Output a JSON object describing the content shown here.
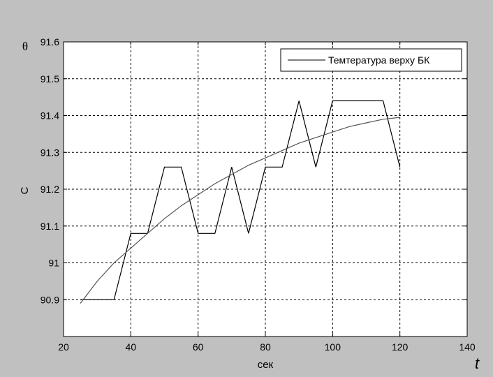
{
  "figure": {
    "background": "#c0c0c0",
    "axes_background": "#ffffff",
    "theta_label": "θ",
    "t_label": "t"
  },
  "chart_data": {
    "type": "line",
    "title": "",
    "xlabel": "сек",
    "ylabel": "C",
    "xlim": [
      20,
      140
    ],
    "ylim": [
      90.8,
      91.6
    ],
    "xticks": [
      20,
      40,
      60,
      80,
      100,
      120,
      140
    ],
    "yticks": [
      90.9,
      91,
      91.1,
      91.2,
      91.3,
      91.4,
      91.5,
      91.6
    ],
    "ytick_labels": [
      "90.9",
      "91",
      "91.1",
      "91.2",
      "91.3",
      "91.4",
      "91.5",
      "91.6"
    ],
    "grid": true,
    "legend_position": "top-right",
    "series": [
      {
        "name": "Темтература верху БК",
        "color": "#000000",
        "x": [
          25,
          30,
          35,
          40,
          45,
          50,
          55,
          60,
          65,
          70,
          75,
          80,
          85,
          90,
          95,
          100,
          105,
          110,
          115,
          120
        ],
        "y": [
          90.9,
          90.9,
          90.9,
          91.08,
          91.08,
          91.26,
          91.26,
          91.08,
          91.08,
          91.26,
          91.08,
          91.26,
          91.26,
          91.44,
          91.26,
          91.44,
          91.44,
          91.44,
          91.44,
          91.26
        ]
      },
      {
        "name": "",
        "color": "#555555",
        "x": [
          25,
          30,
          35,
          40,
          45,
          50,
          55,
          60,
          65,
          70,
          75,
          80,
          85,
          90,
          95,
          100,
          105,
          110,
          115,
          120
        ],
        "y": [
          90.89,
          90.95,
          91.0,
          91.04,
          91.08,
          91.12,
          91.155,
          91.185,
          91.215,
          91.24,
          91.265,
          91.285,
          91.305,
          91.325,
          91.34,
          91.355,
          91.37,
          91.38,
          91.39,
          91.395
        ]
      }
    ]
  }
}
